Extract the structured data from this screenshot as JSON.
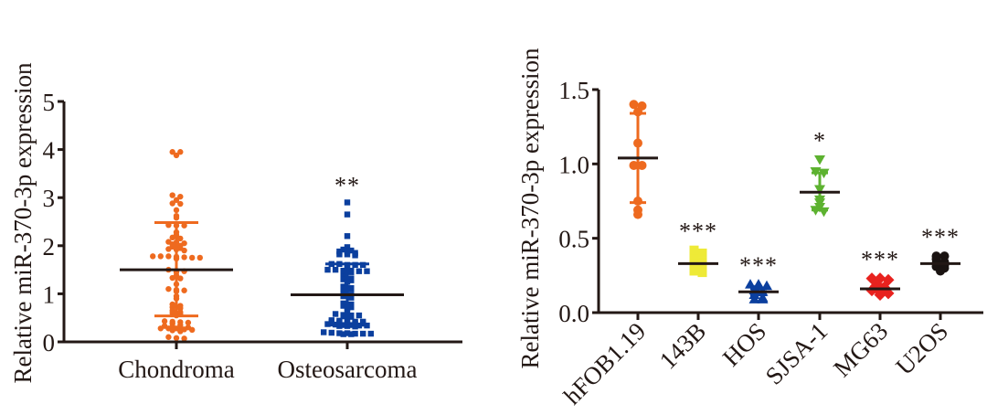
{
  "chart_data": [
    {
      "type": "scatter",
      "subtype": "dot-plot-mean-sd",
      "title": "",
      "xlabel": "",
      "ylabel": "Relative miR-370-3p expression",
      "ylim": [
        0,
        5
      ],
      "yticks": [
        "0",
        "1",
        "2",
        "3",
        "4",
        "5"
      ],
      "grid": false,
      "categories": [
        "Chondroma",
        "Osteosarcoma"
      ],
      "series": [
        {
          "name": "Chondroma",
          "color": "#EE6A1F",
          "marker": "circle",
          "mean": 1.5,
          "sd_upper": 2.48,
          "sd_lower": 0.54,
          "significance": "",
          "values": [
            3.95,
            3.88,
            3.95,
            3.05,
            3.02,
            2.95,
            2.88,
            2.87,
            2.74,
            2.62,
            2.58,
            2.43,
            2.42,
            2.42,
            2.28,
            2.22,
            2.17,
            2.15,
            2.08,
            2.07,
            2.05,
            2.03,
            2.0,
            1.98,
            1.95,
            1.93,
            1.92,
            1.9,
            1.78,
            1.78,
            1.78,
            1.77,
            1.76,
            1.75,
            1.75,
            1.73,
            1.5,
            1.48,
            1.47,
            1.45,
            1.38,
            1.33,
            1.32,
            1.2,
            1.1,
            1.08,
            1.07,
            1.05,
            0.95,
            0.9,
            0.78,
            0.75,
            0.72,
            0.7,
            0.65,
            0.62,
            0.6,
            0.58,
            0.55,
            0.43,
            0.42,
            0.41,
            0.4,
            0.38,
            0.35,
            0.33,
            0.32,
            0.3,
            0.3,
            0.28,
            0.28,
            0.28,
            0.26,
            0.25,
            0.24,
            0.22,
            0.1,
            0.08,
            0.07
          ]
        },
        {
          "name": "Osteosarcoma",
          "color": "#0B3F9E",
          "marker": "square",
          "mean": 0.98,
          "sd_upper": 1.62,
          "sd_lower": 0.35,
          "significance": "**",
          "values": [
            2.9,
            2.65,
            2.2,
            1.97,
            1.92,
            1.9,
            1.88,
            1.88,
            1.85,
            1.82,
            1.82,
            1.8,
            1.62,
            1.62,
            1.6,
            1.6,
            1.6,
            1.58,
            1.5,
            1.5,
            1.48,
            1.48,
            1.47,
            1.47,
            1.46,
            1.45,
            1.35,
            1.32,
            1.3,
            1.28,
            1.25,
            1.15,
            1.12,
            1.1,
            1.1,
            1.0,
            0.98,
            0.95,
            0.92,
            0.8,
            0.78,
            0.75,
            0.72,
            0.7,
            0.65,
            0.58,
            0.56,
            0.55,
            0.55,
            0.53,
            0.52,
            0.45,
            0.44,
            0.43,
            0.42,
            0.42,
            0.41,
            0.4,
            0.4,
            0.38,
            0.38,
            0.37,
            0.36,
            0.35,
            0.35,
            0.34,
            0.34,
            0.33,
            0.33,
            0.32,
            0.2,
            0.19,
            0.18,
            0.18,
            0.17,
            0.17,
            0.17,
            0.16,
            0.16
          ]
        }
      ]
    },
    {
      "type": "scatter",
      "subtype": "dot-plot-mean-sd",
      "title": "",
      "xlabel": "",
      "ylabel": "Relative miR-370-3p expression",
      "ylim": [
        0,
        1.5
      ],
      "yticks": [
        "0.0",
        "0.5",
        "1.0",
        "1.5"
      ],
      "grid": false,
      "categories": [
        "hFOB1.19",
        "143B",
        "HOS",
        "SJSA-1",
        "MG63",
        "U2OS"
      ],
      "series": [
        {
          "name": "hFOB1.19",
          "color": "#EE6A1F",
          "marker": "circle",
          "mean": 1.04,
          "sd_upper": 1.34,
          "sd_lower": 0.74,
          "significance": "",
          "values": [
            1.4,
            1.39,
            1.35,
            1.14,
            0.99,
            0.99,
            0.75,
            0.69,
            0.66
          ]
        },
        {
          "name": "143B",
          "color": "#EEEA37",
          "marker": "square",
          "mean": 0.33,
          "sd_upper": 0.35,
          "sd_lower": 0.31,
          "significance": "***",
          "values": [
            0.42,
            0.4,
            0.36,
            0.34,
            0.33,
            0.31,
            0.3,
            0.28,
            0.27
          ]
        },
        {
          "name": "HOS",
          "color": "#0B3F9E",
          "marker": "triangle-up",
          "mean": 0.14,
          "sd_upper": 0.16,
          "sd_lower": 0.12,
          "significance": "***",
          "values": [
            0.19,
            0.19,
            0.18,
            0.15,
            0.14,
            0.12,
            0.1,
            0.09,
            0.09
          ]
        },
        {
          "name": "SJSA-1",
          "color": "#5DB230",
          "marker": "triangle-down",
          "mean": 0.81,
          "sd_upper": 0.94,
          "sd_lower": 0.69,
          "significance": "*",
          "values": [
            1.03,
            0.95,
            0.94,
            0.83,
            0.76,
            0.74,
            0.71,
            0.69,
            0.68
          ]
        },
        {
          "name": "MG63",
          "color": "#E8221E",
          "marker": "diamond",
          "mean": 0.16,
          "sd_upper": 0.19,
          "sd_lower": 0.14,
          "significance": "***",
          "values": [
            0.23,
            0.23,
            0.22,
            0.18,
            0.17,
            0.15,
            0.14,
            0.13,
            0.12
          ]
        },
        {
          "name": "U2OS",
          "color": "#1A1311",
          "marker": "circle",
          "mean": 0.33,
          "sd_upper": 0.34,
          "sd_lower": 0.32,
          "significance": "***",
          "values": [
            0.38,
            0.38,
            0.36,
            0.34,
            0.33,
            0.32,
            0.31,
            0.3,
            0.28
          ]
        }
      ]
    }
  ]
}
